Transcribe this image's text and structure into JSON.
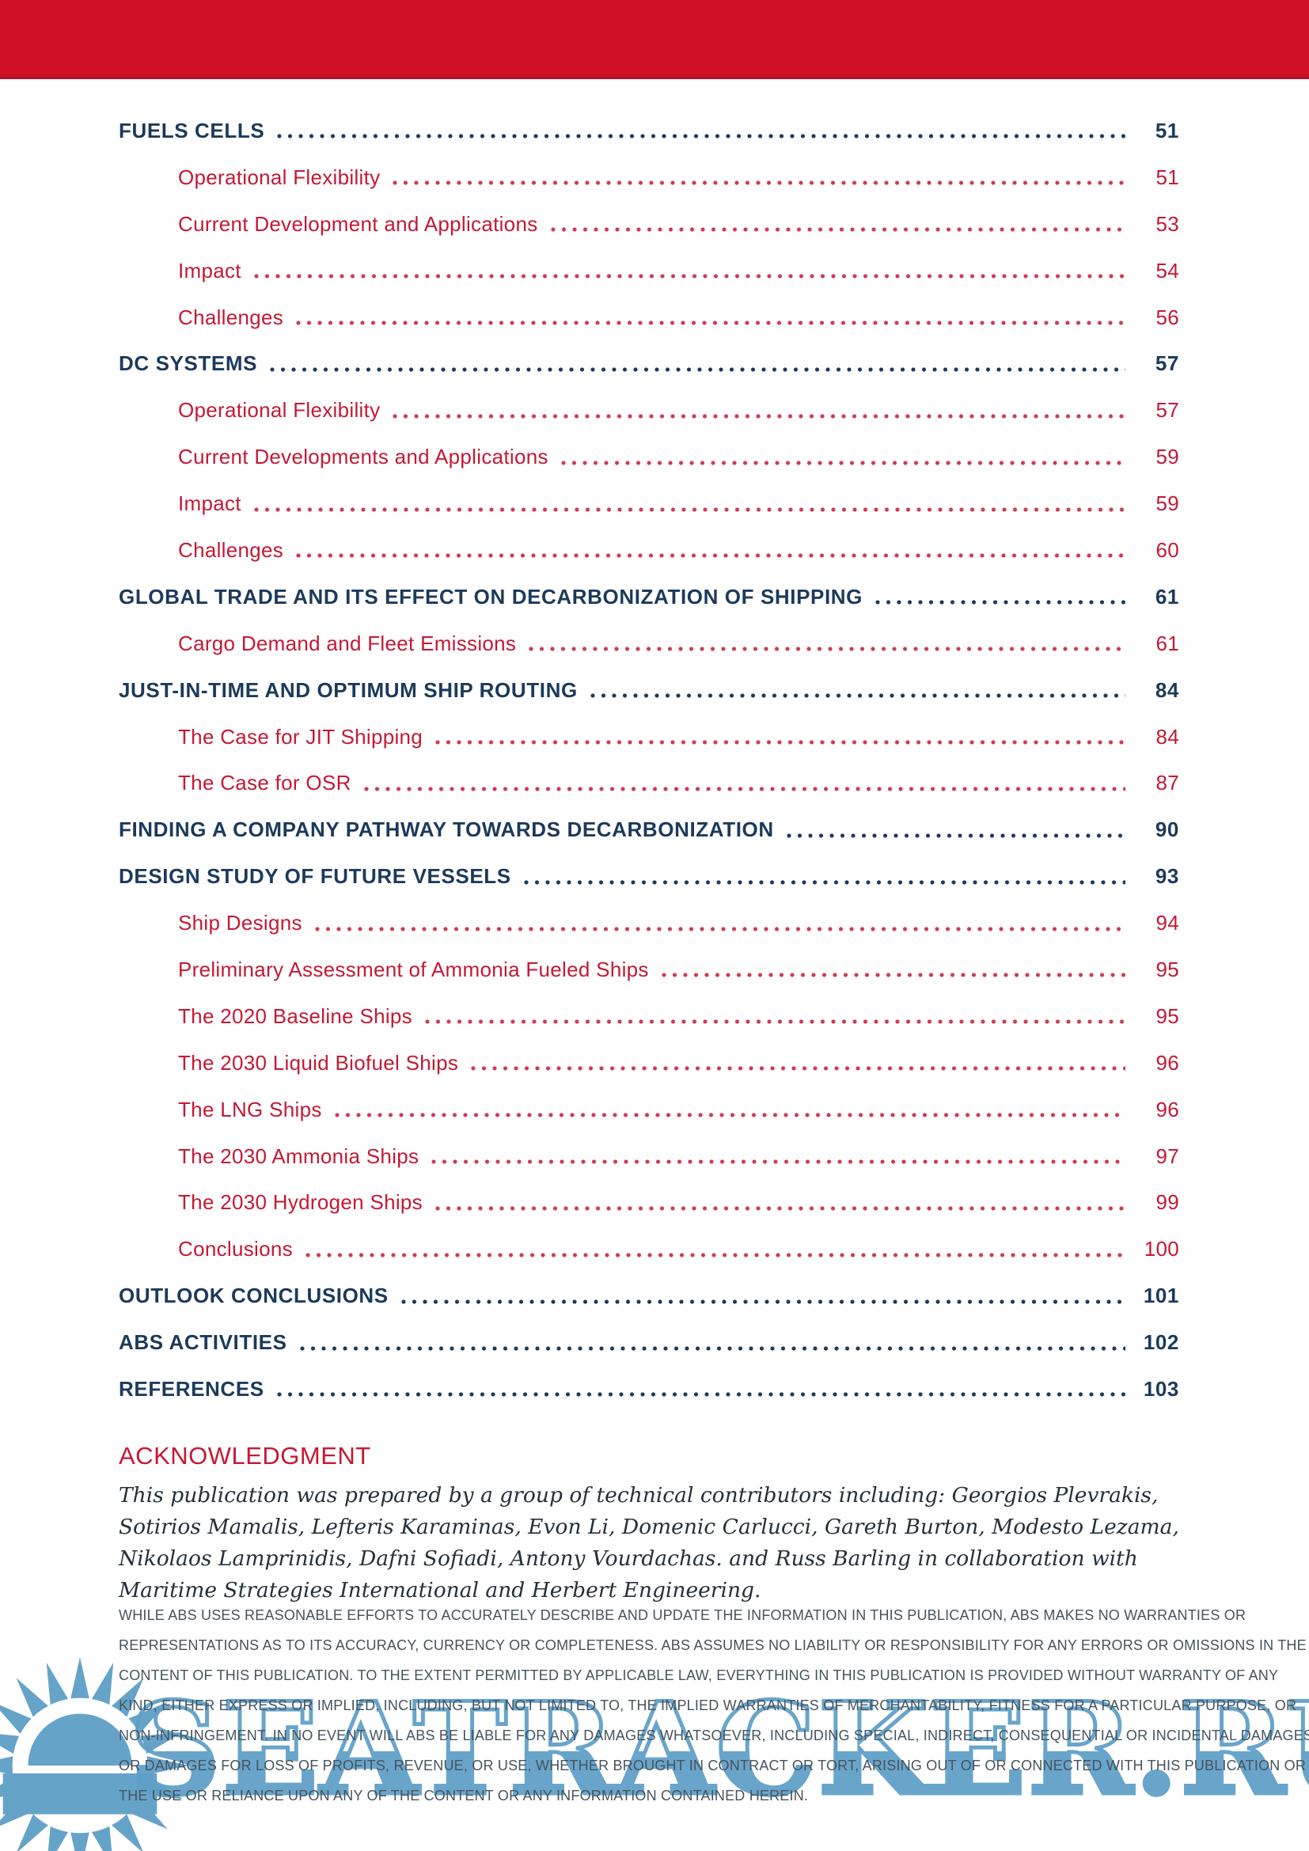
{
  "colors": {
    "banner_red": "#ce1126",
    "banner_edge": "#b01527",
    "navy": "#1b3a5c",
    "red": "#c41935",
    "watermark_blue": "#5e9fc7"
  },
  "toc": {
    "entries": [
      {
        "label": "FUELS CELLS",
        "page": "51",
        "level": 1
      },
      {
        "label": "Operational Flexibility",
        "page": "51",
        "level": 2
      },
      {
        "label": "Current Development and Applications",
        "page": "53",
        "level": 2
      },
      {
        "label": "Impact",
        "page": "54",
        "level": 2
      },
      {
        "label": "Challenges",
        "page": "56",
        "level": 2
      },
      {
        "label": "DC SYSTEMS",
        "page": "57",
        "level": 1
      },
      {
        "label": "Operational Flexibility",
        "page": "57",
        "level": 2
      },
      {
        "label": "Current Developments and Applications",
        "page": "59",
        "level": 2
      },
      {
        "label": "Impact",
        "page": "59",
        "level": 2
      },
      {
        "label": "Challenges",
        "page": "60",
        "level": 2
      },
      {
        "label": "GLOBAL TRADE AND ITS EFFECT ON DECARBONIZATION OF SHIPPING",
        "page": "61",
        "level": 1
      },
      {
        "label": "Cargo Demand and Fleet Emissions",
        "page": "61",
        "level": 2
      },
      {
        "label": "JUST-IN-TIME AND OPTIMUM SHIP ROUTING",
        "page": "84",
        "level": 1
      },
      {
        "label": "The Case for JIT Shipping",
        "page": "84",
        "level": 2
      },
      {
        "label": "The Case for OSR",
        "page": "87",
        "level": 2
      },
      {
        "label": "FINDING A COMPANY PATHWAY TOWARDS DECARBONIZATION",
        "page": "90",
        "level": 1
      },
      {
        "label": "DESIGN STUDY OF FUTURE VESSELS",
        "page": "93",
        "level": 1
      },
      {
        "label": "Ship Designs",
        "page": "94",
        "level": 2
      },
      {
        "label": "Preliminary Assessment of Ammonia Fueled Ships",
        "page": "95",
        "level": 2
      },
      {
        "label": "The 2020 Baseline Ships",
        "page": "95",
        "level": 2
      },
      {
        "label": "The 2030 Liquid Biofuel Ships",
        "page": "96",
        "level": 2
      },
      {
        "label": "The LNG Ships",
        "page": "96",
        "level": 2
      },
      {
        "label": "The 2030 Ammonia Ships",
        "page": "97",
        "level": 2
      },
      {
        "label": "The 2030 Hydrogen Ships",
        "page": "99",
        "level": 2
      },
      {
        "label": "Conclusions",
        "page": "100",
        "level": 2
      },
      {
        "label": "OUTLOOK CONCLUSIONS",
        "page": "101",
        "level": 1
      },
      {
        "label": "ABS ACTIVITIES",
        "page": "102",
        "level": 1
      },
      {
        "label": "REFERENCES",
        "page": "103",
        "level": 1
      }
    ]
  },
  "acknowledgment": {
    "heading": "ACKNOWLEDGMENT",
    "body": "This publication was prepared by a group of technical contributors including: Georgios Plevrakis, Sotirios Mamalis, Lefteris Karaminas, Evon Li, Domenic Carlucci, Gareth Burton, Modesto Lezama, Nikolaos Lamprinidis, Dafni Sofiadi, Antony Vourdachas. and Russ Barling in collaboration with Maritime Strategies International and Herbert Engineering."
  },
  "disclaimer": {
    "body": "WHILE ABS USES REASONABLE EFFORTS TO ACCURATELY DESCRIBE AND UPDATE THE INFORMATION IN THIS PUBLICATION, ABS MAKES NO WARRANTIES OR REPRESENTATIONS AS TO ITS ACCURACY, CURRENCY OR COMPLETENESS. ABS ASSUMES NO LIABILITY OR RESPONSIBILITY FOR ANY ERRORS OR OMISSIONS IN THE CONTENT OF THIS PUBLICATION. TO THE EXTENT PERMITTED BY APPLICABLE LAW, EVERYTHING IN THIS PUBLICATION IS PROVIDED WITHOUT WARRANTY OF ANY KIND, EITHER EXPRESS OR IMPLIED, INCLUDING, BUT NOT LIMITED TO, THE IMPLIED WARRANTIES OF MERCHANTABILITY, FITNESS FOR A PARTICULAR PURPOSE, OR NON-INFRINGEMENT. IN NO EVENT WILL ABS BE LIABLE FOR ANY DAMAGES WHATSOEVER, INCLUDING SPECIAL, INDIRECT, CONSEQUENTIAL OR INCIDENTAL DAMAGES OR DAMAGES FOR LOSS OF PROFITS, REVENUE, OR USE, WHETHER BROUGHT IN CONTRACT OR TORT, ARISING OUT OF OR CONNECTED WITH THIS PUBLICATION OR THE USE OR RELIANCE UPON ANY OF THE CONTENT OR ANY INFORMATION CONTAINED HEREIN."
  },
  "watermark": {
    "text": "SEATRACKER.RU",
    "icon": "sun-over-sea-logo"
  }
}
